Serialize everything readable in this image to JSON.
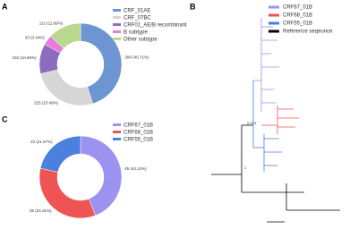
{
  "chart_data": [
    {
      "type": "pie",
      "panel": "A",
      "donut": true,
      "categories": [
        "CRF_01AE",
        "CRF_07BC",
        "CRF01_AE/B recombinant",
        "B subtype",
        "Other subtype"
      ],
      "values": [
        390,
        225,
        102,
        33,
        112
      ],
      "value_labels": [
        "390 (40.71%)",
        "225 (23.49%)",
        "102 (10.65%)",
        "33 (3.44%)",
        "112 (11.69%)"
      ],
      "colors": [
        "#6d95d1",
        "#d6d6d6",
        "#8d6cbf",
        "#e57bdc",
        "#b9d98e"
      ]
    },
    {
      "type": "pie",
      "panel": "C",
      "donut": true,
      "categories": [
        "CRF67_01B",
        "CRF68_01B",
        "CRF55_01B"
      ],
      "values": [
        45,
        35,
        22
      ],
      "value_labels": [
        "45 (44.12%)",
        "35 (34.31%)",
        "22 (21.57%)"
      ],
      "colors": [
        "#9c92f0",
        "#ee5453",
        "#4c80df"
      ]
    }
  ],
  "tree": {
    "panel": "B",
    "legend": [
      {
        "name": "CRF67_01B",
        "color": "#9c92f0"
      },
      {
        "name": "CRF68_01B",
        "color": "#ee5453"
      },
      {
        "name": "CRF55_01B",
        "color": "#4c80df"
      },
      {
        "name": "Reference seqeunce",
        "color": "#000000"
      }
    ],
    "annotations": [
      "0.973",
      "1"
    ]
  }
}
